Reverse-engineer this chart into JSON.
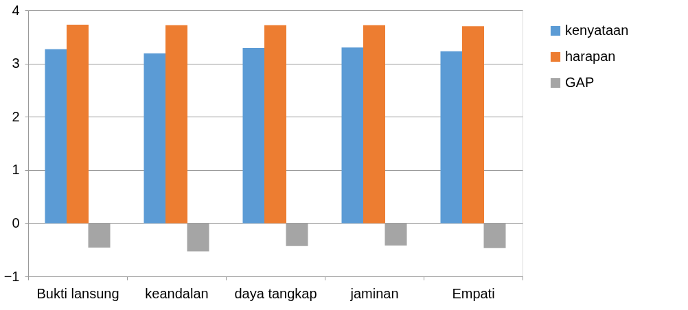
{
  "chart_data": {
    "type": "bar",
    "categories": [
      "Bukti lansung",
      "keandalan",
      "daya tangkap",
      "jaminan",
      "Empati"
    ],
    "series": [
      {
        "name": "kenyataan",
        "color": "#5b9bd5",
        "values": [
          3.27,
          3.19,
          3.29,
          3.3,
          3.23
        ]
      },
      {
        "name": "harapan",
        "color": "#ed7d31",
        "values": [
          3.73,
          3.72,
          3.72,
          3.72,
          3.7
        ]
      },
      {
        "name": "GAP",
        "color": "#a5a5a5",
        "values": [
          -0.46,
          -0.53,
          -0.43,
          -0.42,
          -0.47
        ]
      }
    ],
    "ylim": [
      -1,
      4
    ],
    "yticks": [
      -1,
      0,
      1,
      2,
      3,
      4
    ],
    "grid": "y",
    "legend": "right"
  }
}
